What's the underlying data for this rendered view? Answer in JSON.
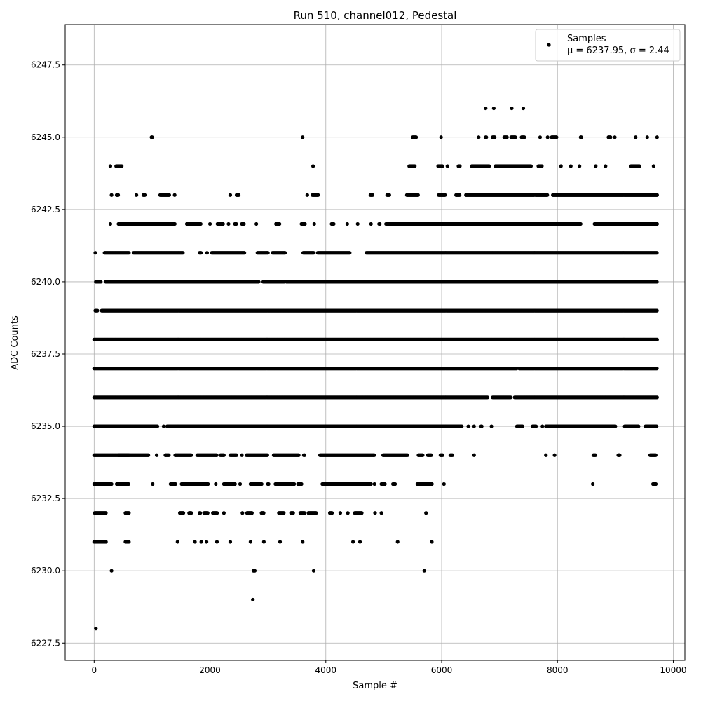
{
  "chart_data": {
    "type": "scatter",
    "title": "Run 510, channel012, Pedestal",
    "xlabel": "Sample #",
    "ylabel": "ADC Counts",
    "xlim": [
      -500,
      10200
    ],
    "ylim": [
      6226.9,
      6248.9
    ],
    "grid": true,
    "legend": {
      "placement": "top-right",
      "label": "Samples",
      "stats_text": "μ = 6237.95, σ = 2.44"
    },
    "x_ticks": [
      0,
      2000,
      4000,
      6000,
      8000,
      10000
    ],
    "x_tick_labels": [
      "0",
      "2000",
      "4000",
      "6000",
      "8000",
      "10000"
    ],
    "y_ticks": [
      6227.5,
      6230.0,
      6232.5,
      6235.0,
      6237.5,
      6240.0,
      6242.5,
      6245.0,
      6247.5
    ],
    "y_tick_labels": [
      "6227.5",
      "6230.0",
      "6232.5",
      "6235.0",
      "6237.5",
      "6240.0",
      "6242.5",
      "6245.0",
      "6247.5"
    ],
    "marker_color": "#000000",
    "series": [
      {
        "name": "Samples",
        "x_range": [
          0,
          9720
        ],
        "levels": [
          {
            "y": 6246,
            "x_segments": [
              [
                6760,
                6760
              ],
              [
                6900,
                6900
              ],
              [
                7210,
                7210
              ],
              [
                7410,
                7410
              ]
            ]
          },
          {
            "y": 6245,
            "x_segments": [
              [
                990,
                1010
              ],
              [
                3600,
                3600
              ],
              [
                5500,
                5560
              ],
              [
                5990,
                5990
              ],
              [
                6640,
                6640
              ],
              [
                6760,
                6780
              ],
              [
                6880,
                6920
              ],
              [
                7080,
                7130
              ],
              [
                7200,
                7280
              ],
              [
                7380,
                7430
              ],
              [
                7700,
                7700
              ],
              [
                7830,
                7830
              ],
              [
                7900,
                7990
              ],
              [
                8400,
                8420
              ],
              [
                8880,
                8920
              ],
              [
                8990,
                9000
              ],
              [
                9350,
                9360
              ],
              [
                9550,
                9560
              ],
              [
                9720,
                9720
              ]
            ]
          },
          {
            "y": 6244,
            "x_segments": [
              [
                280,
                280
              ],
              [
                380,
                480
              ],
              [
                3780,
                3780
              ],
              [
                5440,
                5540
              ],
              [
                5940,
                6020
              ],
              [
                6100,
                6100
              ],
              [
                6290,
                6320
              ],
              [
                6520,
                6820
              ],
              [
                6930,
                7550
              ],
              [
                7670,
                7740
              ],
              [
                8060,
                8060
              ],
              [
                8230,
                8230
              ],
              [
                8380,
                8380
              ],
              [
                8660,
                8660
              ],
              [
                8830,
                8830
              ],
              [
                9270,
                9420
              ],
              [
                9660,
                9660
              ]
            ]
          },
          {
            "y": 6243,
            "x_segments": [
              [
                300,
                300
              ],
              [
                390,
                420
              ],
              [
                730,
                730
              ],
              [
                850,
                880
              ],
              [
                1140,
                1300
              ],
              [
                1390,
                1390
              ],
              [
                2350,
                2350
              ],
              [
                2460,
                2500
              ],
              [
                3680,
                3680
              ],
              [
                3770,
                3870
              ],
              [
                4770,
                4810
              ],
              [
                5060,
                5100
              ],
              [
                5400,
                5600
              ],
              [
                5950,
                6060
              ],
              [
                6250,
                6310
              ],
              [
                6420,
                7600
              ],
              [
                7620,
                7830
              ],
              [
                7920,
                9720
              ]
            ]
          },
          {
            "y": 6242,
            "x_segments": [
              [
                280,
                280
              ],
              [
                420,
                1400
              ],
              [
                1600,
                1850
              ],
              [
                2000,
                2000
              ],
              [
                2130,
                2230
              ],
              [
                2320,
                2330
              ],
              [
                2430,
                2460
              ],
              [
                2550,
                2590
              ],
              [
                2800,
                2800
              ],
              [
                3140,
                3200
              ],
              [
                3580,
                3650
              ],
              [
                3800,
                3800
              ],
              [
                4100,
                4140
              ],
              [
                4370,
                4370
              ],
              [
                4550,
                4550
              ],
              [
                4780,
                4780
              ],
              [
                4920,
                4940
              ],
              [
                5040,
                8400
              ],
              [
                8640,
                9720
              ]
            ]
          },
          {
            "y": 6241,
            "x_segments": [
              [
                20,
                20
              ],
              [
                180,
                600
              ],
              [
                680,
                1540
              ],
              [
                1820,
                1850
              ],
              [
                1950,
                1950
              ],
              [
                2030,
                2600
              ],
              [
                2820,
                3000
              ],
              [
                3080,
                3300
              ],
              [
                3610,
                3800
              ],
              [
                3860,
                4420
              ],
              [
                4700,
                9720
              ]
            ]
          },
          {
            "y": 6240,
            "x_segments": [
              [
                30,
                120
              ],
              [
                200,
                2840
              ],
              [
                2920,
                3280
              ],
              [
                3320,
                9720
              ]
            ]
          },
          {
            "y": 6239,
            "x_segments": [
              [
                20,
                60
              ],
              [
                130,
                9720
              ]
            ]
          },
          {
            "y": 6238,
            "x_segments": [
              [
                0,
                9720
              ]
            ]
          },
          {
            "y": 6237,
            "x_segments": [
              [
                0,
                7300
              ],
              [
                7340,
                9720
              ]
            ]
          },
          {
            "y": 6236,
            "x_segments": [
              [
                0,
                6800
              ],
              [
                6880,
                7200
              ],
              [
                7260,
                9720
              ]
            ]
          },
          {
            "y": 6235,
            "x_segments": [
              [
                0,
                1100
              ],
              [
                1200,
                1200
              ],
              [
                1260,
                6350
              ],
              [
                6460,
                6460
              ],
              [
                6560,
                6560
              ],
              [
                6680,
                6700
              ],
              [
                6860,
                6860
              ],
              [
                7300,
                7400
              ],
              [
                7570,
                7640
              ],
              [
                7740,
                7740
              ],
              [
                7800,
                9000
              ],
              [
                9160,
                9400
              ],
              [
                9520,
                9720
              ]
            ]
          },
          {
            "y": 6234,
            "x_segments": [
              [
                0,
                600
              ],
              [
                420,
                940
              ],
              [
                1080,
                1080
              ],
              [
                1230,
                1300
              ],
              [
                1400,
                1680
              ],
              [
                1780,
                2120
              ],
              [
                2180,
                2240
              ],
              [
                2350,
                2460
              ],
              [
                2550,
                2560
              ],
              [
                2630,
                3000
              ],
              [
                3100,
                3540
              ],
              [
                3620,
                3640
              ],
              [
                3900,
                4840
              ],
              [
                4990,
                5420
              ],
              [
                5600,
                5680
              ],
              [
                5760,
                5820
              ],
              [
                5980,
                6020
              ],
              [
                6150,
                6190
              ],
              [
                6560,
                6560
              ],
              [
                7800,
                7800
              ],
              [
                7950,
                7950
              ],
              [
                8620,
                8660
              ],
              [
                9050,
                9080
              ],
              [
                9600,
                9700
              ]
            ]
          },
          {
            "y": 6233,
            "x_segments": [
              [
                0,
                300
              ],
              [
                390,
                600
              ],
              [
                1010,
                1010
              ],
              [
                1320,
                1410
              ],
              [
                1510,
                1970
              ],
              [
                2100,
                2100
              ],
              [
                2240,
                2440
              ],
              [
                2520,
                2520
              ],
              [
                2700,
                2900
              ],
              [
                3000,
                3020
              ],
              [
                3130,
                3460
              ],
              [
                3520,
                3580
              ],
              [
                3940,
                4780
              ],
              [
                4840,
                4840
              ],
              [
                4960,
                5030
              ],
              [
                5160,
                5200
              ],
              [
                5580,
                5840
              ],
              [
                6040,
                6040
              ],
              [
                8610,
                8610
              ],
              [
                9650,
                9700
              ]
            ]
          },
          {
            "y": 6232,
            "x_segments": [
              [
                10,
                210
              ],
              [
                540,
                600
              ],
              [
                1480,
                1550
              ],
              [
                1640,
                1680
              ],
              [
                1820,
                1840
              ],
              [
                1900,
                1960
              ],
              [
                2050,
                2130
              ],
              [
                2240,
                2240
              ],
              [
                2560,
                2560
              ],
              [
                2640,
                2730
              ],
              [
                2890,
                2930
              ],
              [
                3190,
                3280
              ],
              [
                3400,
                3440
              ],
              [
                3560,
                3640
              ],
              [
                3700,
                3840
              ],
              [
                4070,
                4110
              ],
              [
                4250,
                4250
              ],
              [
                4380,
                4380
              ],
              [
                4500,
                4620
              ],
              [
                4850,
                4850
              ],
              [
                4960,
                4960
              ],
              [
                5730,
                5730
              ]
            ]
          },
          {
            "y": 6231,
            "x_segments": [
              [
                0,
                210
              ],
              [
                540,
                600
              ],
              [
                1440,
                1440
              ],
              [
                1740,
                1740
              ],
              [
                1850,
                1850
              ],
              [
                1940,
                1940
              ],
              [
                2120,
                2120
              ],
              [
                2350,
                2350
              ],
              [
                2700,
                2700
              ],
              [
                2930,
                2930
              ],
              [
                3210,
                3210
              ],
              [
                3600,
                3600
              ],
              [
                4470,
                4470
              ],
              [
                4590,
                4590
              ],
              [
                5240,
                5240
              ],
              [
                5830,
                5830
              ]
            ]
          },
          {
            "y": 6230,
            "x_segments": [
              [
                300,
                300
              ],
              [
                2750,
                2780
              ],
              [
                3790,
                3790
              ],
              [
                5700,
                5700
              ]
            ]
          },
          {
            "y": 6229,
            "x_segments": [
              [
                2740,
                2740
              ]
            ]
          },
          {
            "y": 6228,
            "x_segments": [
              [
                30,
                30
              ]
            ]
          }
        ]
      }
    ]
  }
}
